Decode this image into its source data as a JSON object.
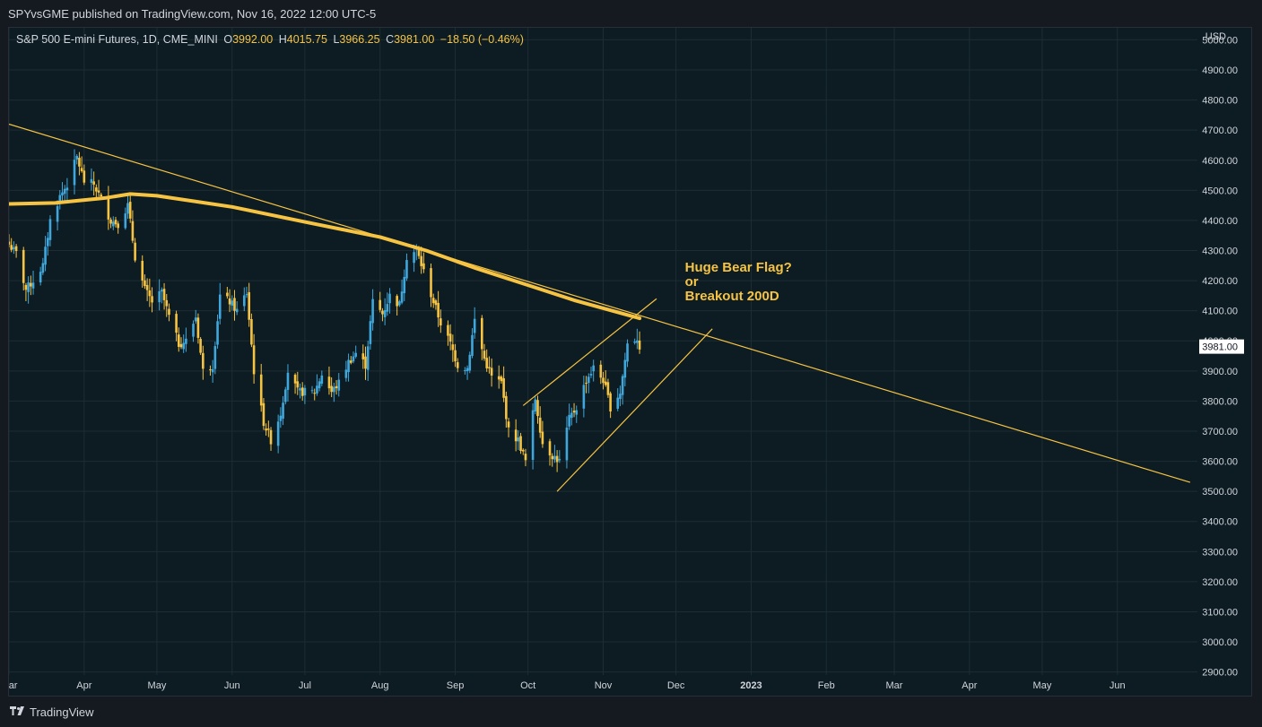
{
  "header": {
    "publisher_line": "SPYvsGME published on TradingView.com, Nov 16, 2022 12:00 UTC-5"
  },
  "legend": {
    "symbol": "S&P 500 E-mini Futures, 1D, CME_MINI",
    "open_label": "O",
    "open": "3992.00",
    "high_label": "H",
    "high": "4015.75",
    "low_label": "L",
    "low": "3966.25",
    "close_label": "C",
    "close": "3981.00",
    "change": "−18.50 (−0.46%)"
  },
  "axis": {
    "currency": "USD",
    "last_price": "3981.00"
  },
  "footer": {
    "brand": "TradingView",
    "logo_icon": "tradingview-logo-icon"
  },
  "colors": {
    "up": "#3fa7dc",
    "down": "#f6c343",
    "ma": "#f6c343",
    "trend": "#f6c343",
    "annotation": "#f6c343"
  },
  "chart_data": {
    "type": "candlestick",
    "title": "S&P 500 E-mini Futures, 1D, CME_MINI",
    "y_ticks": [
      5000,
      4900,
      4800,
      4700,
      4600,
      4500,
      4400,
      4300,
      4200,
      4100,
      4000,
      3900,
      3800,
      3700,
      3600,
      3500,
      3400,
      3300,
      3200,
      3100,
      3000,
      2900
    ],
    "y_tick_labels": [
      "5000.00",
      "4900.00",
      "4800.00",
      "4700.00",
      "4600.00",
      "4500.00",
      "4400.00",
      "4300.00",
      "4200.00",
      "4100.00",
      "4000.00",
      "3900.00",
      "3800.00",
      "3700.00",
      "3600.00",
      "3500.00",
      "3400.00",
      "3300.00",
      "3200.00",
      "3100.00",
      "3000.00",
      "2900.00"
    ],
    "ylim": [
      2890,
      5040
    ],
    "x_labels": [
      {
        "label": "Mar",
        "date": "2022-03-01"
      },
      {
        "label": "Apr",
        "date": "2022-04-01"
      },
      {
        "label": "May",
        "date": "2022-05-01"
      },
      {
        "label": "Jun",
        "date": "2022-06-01"
      },
      {
        "label": "Jul",
        "date": "2022-07-01"
      },
      {
        "label": "Aug",
        "date": "2022-08-01"
      },
      {
        "label": "Sep",
        "date": "2022-09-01"
      },
      {
        "label": "Oct",
        "date": "2022-10-01"
      },
      {
        "label": "Nov",
        "date": "2022-11-01"
      },
      {
        "label": "Dec",
        "date": "2022-12-01"
      },
      {
        "label": "2023",
        "date": "2023-01-01",
        "bold": true
      },
      {
        "label": "Feb",
        "date": "2023-02-01"
      },
      {
        "label": "Mar",
        "date": "2023-03-01"
      },
      {
        "label": "Apr",
        "date": "2023-04-01"
      },
      {
        "label": "May",
        "date": "2023-05-01"
      },
      {
        "label": "Jun",
        "date": "2023-06-01"
      }
    ],
    "xlim": [
      "2022-03-01",
      "2023-07-04"
    ],
    "closes": [
      [
        "2022-03-01",
        4320
      ],
      [
        "2022-03-04",
        4290
      ],
      [
        "2022-03-08",
        4170
      ],
      [
        "2022-03-11",
        4200
      ],
      [
        "2022-03-15",
        4250
      ],
      [
        "2022-03-18",
        4400
      ],
      [
        "2022-03-22",
        4480
      ],
      [
        "2022-03-25",
        4520
      ],
      [
        "2022-03-29",
        4610
      ],
      [
        "2022-04-01",
        4530
      ],
      [
        "2022-04-05",
        4520
      ],
      [
        "2022-04-08",
        4470
      ],
      [
        "2022-04-12",
        4400
      ],
      [
        "2022-04-15",
        4390
      ],
      [
        "2022-04-19",
        4450
      ],
      [
        "2022-04-22",
        4280
      ],
      [
        "2022-04-26",
        4170
      ],
      [
        "2022-04-29",
        4130
      ],
      [
        "2022-05-03",
        4160
      ],
      [
        "2022-05-06",
        4080
      ],
      [
        "2022-05-10",
        3990
      ],
      [
        "2022-05-13",
        4000
      ],
      [
        "2022-05-17",
        4080
      ],
      [
        "2022-05-20",
        3900
      ],
      [
        "2022-05-24",
        3920
      ],
      [
        "2022-05-27",
        4150
      ],
      [
        "2022-05-31",
        4130
      ],
      [
        "2022-06-03",
        4100
      ],
      [
        "2022-06-07",
        4160
      ],
      [
        "2022-06-10",
        3900
      ],
      [
        "2022-06-14",
        3730
      ],
      [
        "2022-06-17",
        3670
      ],
      [
        "2022-06-21",
        3760
      ],
      [
        "2022-06-24",
        3900
      ],
      [
        "2022-06-28",
        3830
      ],
      [
        "2022-07-01",
        3830
      ],
      [
        "2022-07-05",
        3830
      ],
      [
        "2022-07-08",
        3890
      ],
      [
        "2022-07-12",
        3830
      ],
      [
        "2022-07-15",
        3860
      ],
      [
        "2022-07-19",
        3930
      ],
      [
        "2022-07-22",
        3960
      ],
      [
        "2022-07-26",
        3920
      ],
      [
        "2022-07-29",
        4130
      ],
      [
        "2022-08-02",
        4090
      ],
      [
        "2022-08-05",
        4150
      ],
      [
        "2022-08-09",
        4120
      ],
      [
        "2022-08-12",
        4280
      ],
      [
        "2022-08-16",
        4300
      ],
      [
        "2022-08-19",
        4230
      ],
      [
        "2022-08-23",
        4130
      ],
      [
        "2022-08-26",
        4060
      ],
      [
        "2022-08-30",
        3990
      ],
      [
        "2022-09-02",
        3920
      ],
      [
        "2022-09-06",
        3910
      ],
      [
        "2022-09-09",
        4070
      ],
      [
        "2022-09-13",
        3940
      ],
      [
        "2022-09-16",
        3880
      ],
      [
        "2022-09-20",
        3860
      ],
      [
        "2022-09-23",
        3700
      ],
      [
        "2022-09-27",
        3670
      ],
      [
        "2022-09-30",
        3600
      ],
      [
        "2022-10-04",
        3810
      ],
      [
        "2022-10-07",
        3660
      ],
      [
        "2022-10-11",
        3620
      ],
      [
        "2022-10-14",
        3600
      ],
      [
        "2022-10-18",
        3740
      ],
      [
        "2022-10-21",
        3780
      ],
      [
        "2022-10-25",
        3870
      ],
      [
        "2022-10-28",
        3910
      ],
      [
        "2022-11-01",
        3870
      ],
      [
        "2022-11-04",
        3780
      ],
      [
        "2022-11-08",
        3830
      ],
      [
        "2022-11-11",
        3990
      ],
      [
        "2022-11-15",
        4010
      ],
      [
        "2022-11-16",
        3981
      ]
    ],
    "moving_average_200d": [
      [
        "2022-03-01",
        4455
      ],
      [
        "2022-03-20",
        4458
      ],
      [
        "2022-04-10",
        4475
      ],
      [
        "2022-04-20",
        4488
      ],
      [
        "2022-05-01",
        4482
      ],
      [
        "2022-06-01",
        4445
      ],
      [
        "2022-07-01",
        4395
      ],
      [
        "2022-08-01",
        4345
      ],
      [
        "2022-08-20",
        4300
      ],
      [
        "2022-09-10",
        4240
      ],
      [
        "2022-10-01",
        4185
      ],
      [
        "2022-10-20",
        4135
      ],
      [
        "2022-11-16",
        4075
      ]
    ],
    "trendlines": [
      {
        "name": "long-downtrend",
        "from": [
          "2022-03-01",
          4720
        ],
        "to": [
          "2023-07-01",
          3530
        ]
      },
      {
        "name": "wedge-upper",
        "from": [
          "2022-09-29",
          3785
        ],
        "to": [
          "2022-11-23",
          4140
        ]
      },
      {
        "name": "wedge-lower",
        "from": [
          "2022-10-13",
          3500
        ],
        "to": [
          "2022-12-16",
          4040
        ]
      }
    ],
    "annotation": {
      "lines": [
        "Huge Bear Flag?",
        "or",
        "Breakout 200D"
      ],
      "at": [
        "2022-12-01",
        4230
      ]
    },
    "last_price": 3981.0
  }
}
